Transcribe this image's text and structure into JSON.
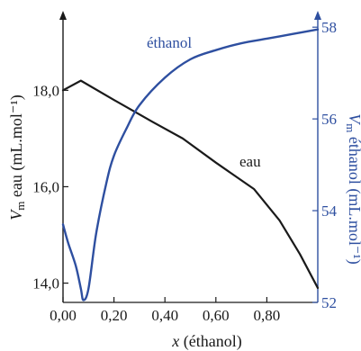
{
  "chart_data": {
    "type": "line",
    "xlabel_var": "x",
    "xlabel_rest": "(éthanol)",
    "ylabel_left_var": "V",
    "ylabel_left_sub": "m",
    "ylabel_left_rest": "eau (mL.mol⁻¹)",
    "ylabel_right_var": "V",
    "ylabel_right_sub": "m",
    "ylabel_right_rest": "éthanol (mL.mol⁻¹)",
    "xlim": [
      0,
      1
    ],
    "ylim_left": [
      13.6,
      19.5
    ],
    "ylim_right": [
      52,
      58.2
    ],
    "x_ticks": [
      {
        "value": 0.0,
        "label": "0,00"
      },
      {
        "value": 0.2,
        "label": "0,20"
      },
      {
        "value": 0.4,
        "label": "0,40"
      },
      {
        "value": 0.6,
        "label": "0,60"
      },
      {
        "value": 0.8,
        "label": "0,80"
      }
    ],
    "y_left_ticks": [
      {
        "value": 14.0,
        "label": "14,0"
      },
      {
        "value": 16.0,
        "label": "16,0"
      },
      {
        "value": 18.0,
        "label": "18,0"
      }
    ],
    "y_right_ticks": [
      {
        "value": 52,
        "label": "52"
      },
      {
        "value": 54,
        "label": "54"
      },
      {
        "value": 56,
        "label": "56"
      },
      {
        "value": 58,
        "label": "58"
      }
    ],
    "colors": {
      "eau": "#1a1a1a",
      "ethanol": "#2e4fa0",
      "axis_left": "#1a1a1a",
      "axis_right": "#2e4fa0"
    },
    "series": [
      {
        "name": "eau",
        "axis": "left",
        "x": [
          0.0,
          0.07,
          0.2,
          0.35,
          0.47,
          0.6,
          0.75,
          0.85,
          0.93,
          1.0
        ],
        "y": [
          18.0,
          18.2,
          17.8,
          17.35,
          17.0,
          16.5,
          15.95,
          15.3,
          14.6,
          13.9
        ]
      },
      {
        "name": "éthanol",
        "axis": "right",
        "x": [
          0.0,
          0.02,
          0.05,
          0.07,
          0.08,
          0.1,
          0.13,
          0.17,
          0.2,
          0.25,
          0.3,
          0.4,
          0.5,
          0.6,
          0.7,
          0.8,
          0.9,
          1.0
        ],
        "y": [
          53.7,
          53.3,
          52.8,
          52.3,
          52.05,
          52.3,
          53.5,
          54.6,
          55.2,
          55.8,
          56.3,
          56.9,
          57.3,
          57.5,
          57.65,
          57.75,
          57.85,
          57.95
        ]
      }
    ]
  }
}
